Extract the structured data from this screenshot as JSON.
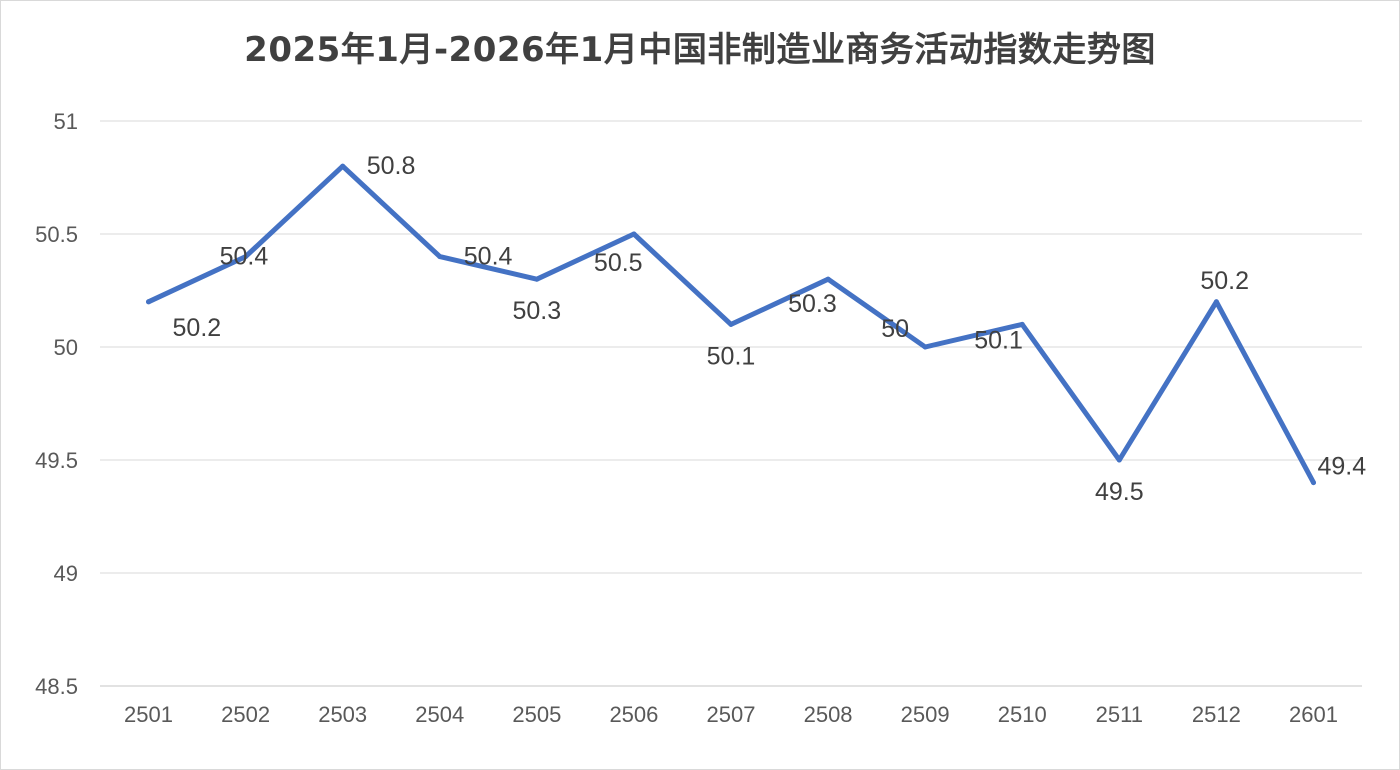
{
  "chart_data": {
    "type": "line",
    "title": "2025年1月-2026年1月中国非制造业商务活动指数走势图",
    "xlabel": "",
    "ylabel": "",
    "categories": [
      "2501",
      "2502",
      "2503",
      "2504",
      "2505",
      "2506",
      "2507",
      "2508",
      "2509",
      "2510",
      "2511",
      "2512",
      "2601"
    ],
    "series": [
      {
        "values": [
          50.2,
          50.4,
          50.8,
          50.4,
          50.3,
          50.5,
          50.1,
          50.3,
          50.0,
          50.1,
          49.5,
          50.2,
          49.4
        ],
        "data_labels": [
          "50.2",
          "50.4",
          "50.8",
          "50.4",
          "50.3",
          "50.5",
          "50.1",
          "50.3",
          "50",
          "50.1",
          "49.5",
          "50.2",
          "49.4"
        ],
        "color": "#4472c4"
      }
    ],
    "ylim": [
      48.5,
      51
    ],
    "y_ticks": [
      "48.5",
      "49",
      "49.5",
      "50",
      "50.5",
      "51"
    ],
    "grid": true,
    "legend": "none"
  }
}
